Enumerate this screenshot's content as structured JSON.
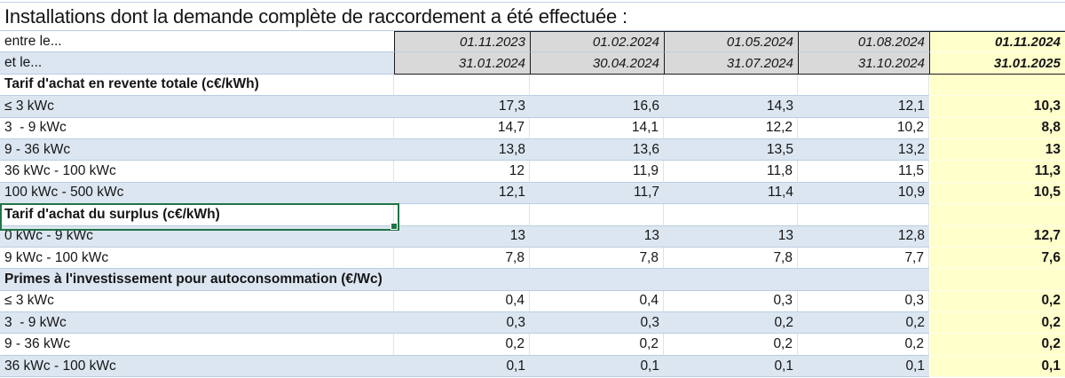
{
  "title": "Installations dont la demande complète de raccordement a été effectuée :",
  "table": {
    "period_rows": [
      {
        "label": "entre le...",
        "values": [
          "01.11.2023",
          "01.02.2024",
          "01.05.2024",
          "01.08.2024",
          "01.11.2024"
        ]
      },
      {
        "label": "et le...",
        "values": [
          "31.01.2024",
          "30.04.2024",
          "31.07.2024",
          "31.10.2024",
          "31.01.2025"
        ]
      }
    ],
    "sections": [
      {
        "header": "Tarif d'achat en revente totale (c€/kWh)",
        "selected": false,
        "rows": [
          {
            "label": "≤ 3 kWc",
            "values": [
              "17,3",
              "16,6",
              "14,3",
              "12,1",
              "10,3"
            ]
          },
          {
            "label": "3  - 9 kWc",
            "values": [
              "14,7",
              "14,1",
              "12,2",
              "10,2",
              "8,8"
            ]
          },
          {
            "label": "9 - 36 kWc",
            "values": [
              "13,8",
              "13,6",
              "13,5",
              "13,2",
              "13"
            ]
          },
          {
            "label": "36 kWc - 100 kWc",
            "values": [
              "12",
              "11,9",
              "11,8",
              "11,5",
              "11,3"
            ]
          },
          {
            "label": "100 kWc - 500 kWc",
            "values": [
              "12,1",
              "11,7",
              "11,4",
              "10,9",
              "10,5"
            ]
          }
        ]
      },
      {
        "header": "Tarif d'achat du surplus (c€/kWh)",
        "selected": true,
        "rows": [
          {
            "label": "0 kWc - 9 kWc",
            "values": [
              "13",
              "13",
              "13",
              "12,8",
              "12,7"
            ]
          },
          {
            "label": "9 kWc - 100 kWc",
            "values": [
              "7,8",
              "7,8",
              "7,8",
              "7,7",
              "7,6"
            ]
          }
        ]
      },
      {
        "header": "Primes à l'investissement pour autoconsommation (€/Wc)",
        "selected": false,
        "rows": [
          {
            "label": "≤ 3 kWc",
            "values": [
              "0,4",
              "0,4",
              "0,3",
              "0,3",
              "0,2"
            ]
          },
          {
            "label": "3  - 9 kWc",
            "values": [
              "0,3",
              "0,3",
              "0,2",
              "0,2",
              "0,2"
            ]
          },
          {
            "label": "9 - 36 kWc",
            "values": [
              "0,2",
              "0,2",
              "0,2",
              "0,2",
              "0,2"
            ]
          },
          {
            "label": "36 kWc - 100 kWc",
            "values": [
              "0,1",
              "0,1",
              "0,1",
              "0,1",
              "0,1"
            ]
          }
        ]
      }
    ]
  },
  "colors": {
    "row_alt_blue": "#dce6f1",
    "gridline_blue": "#b9cde2",
    "date_cell_grey": "#d9d9d9",
    "highlight_yellow": "#ffffcc",
    "selection_green": "#217346",
    "black_border": "#1c1c1c"
  }
}
